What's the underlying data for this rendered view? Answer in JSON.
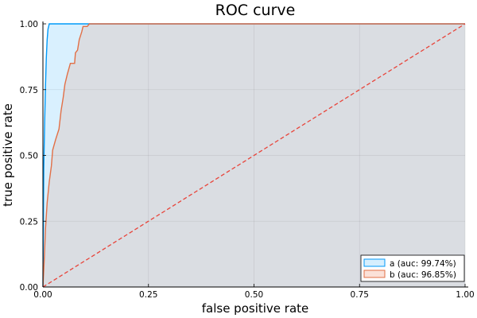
{
  "chart_data": {
    "type": "line",
    "title": "ROC curve",
    "xlabel": "false positive rate",
    "ylabel": "true positive rate",
    "xlim": [
      0,
      1
    ],
    "ylim": [
      0,
      1
    ],
    "x_ticks": [
      "0.00",
      "0.25",
      "0.50",
      "0.75",
      "1.00"
    ],
    "y_ticks": [
      "0.00",
      "0.25",
      "0.50",
      "0.75",
      "1.00"
    ],
    "grid": true,
    "legend_position": "bottom-right",
    "series": [
      {
        "name": "a (auc: 99.74%)",
        "color": "#009af9",
        "fill": "#d6effe",
        "points": [
          [
            0,
            0
          ],
          [
            0.002,
            0.45
          ],
          [
            0.004,
            0.62
          ],
          [
            0.006,
            0.76
          ],
          [
            0.008,
            0.87
          ],
          [
            0.01,
            0.94
          ],
          [
            0.012,
            0.98
          ],
          [
            0.015,
            1.0
          ],
          [
            1.0,
            1.0
          ]
        ]
      },
      {
        "name": "b (auc: 96.85%)",
        "color": "#e26f46",
        "fill": "#fbe1d8",
        "points": [
          [
            0,
            0
          ],
          [
            0.003,
            0.1
          ],
          [
            0.006,
            0.22
          ],
          [
            0.01,
            0.32
          ],
          [
            0.015,
            0.4
          ],
          [
            0.02,
            0.46
          ],
          [
            0.023,
            0.52
          ],
          [
            0.03,
            0.56
          ],
          [
            0.038,
            0.6
          ],
          [
            0.043,
            0.67
          ],
          [
            0.048,
            0.72
          ],
          [
            0.052,
            0.77
          ],
          [
            0.058,
            0.81
          ],
          [
            0.065,
            0.85
          ],
          [
            0.075,
            0.85
          ],
          [
            0.077,
            0.89
          ],
          [
            0.082,
            0.9
          ],
          [
            0.086,
            0.94
          ],
          [
            0.092,
            0.97
          ],
          [
            0.095,
            0.99
          ],
          [
            0.105,
            0.99
          ],
          [
            0.11,
            1.0
          ],
          [
            1.0,
            1.0
          ]
        ]
      }
    ],
    "reference_line": {
      "points": [
        [
          0,
          0
        ],
        [
          1,
          1
        ]
      ],
      "color": "#e8443a",
      "style": "dashed"
    }
  }
}
